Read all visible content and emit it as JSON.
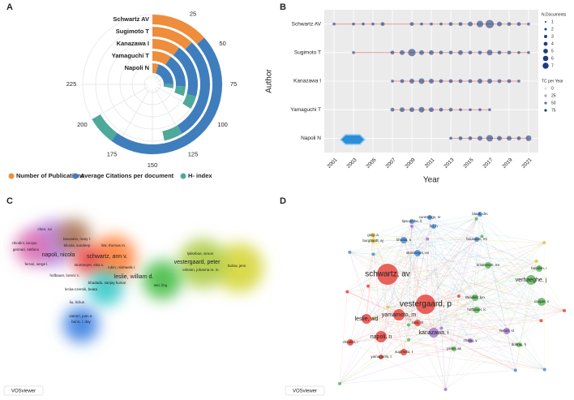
{
  "panel_labels": [
    "A",
    "B",
    "C",
    "D"
  ],
  "chart_data": [
    {
      "type": "radial_bar",
      "categories": [
        "Schwartz AV",
        "Sugimoto T",
        "Kanazawa I",
        "Yamaguchi T",
        "Napoli N"
      ],
      "series": [
        {
          "name": "Number of Publications",
          "color": "#ee8d3b",
          "values": [
            40,
            36,
            30,
            28,
            14
          ]
        },
        {
          "name": "Average Citations per document",
          "color": "#3f7ebd",
          "values": [
            140,
            88,
            58,
            50,
            60
          ]
        },
        {
          "name": "H- index",
          "color": "#4ea99a",
          "values": [
            20,
            16,
            14,
            14,
            10
          ]
        }
      ],
      "stacked": true,
      "xlim": [
        0,
        300
      ],
      "xticks": [
        25,
        50,
        75,
        100,
        125,
        150,
        175,
        200,
        225
      ]
    },
    {
      "type": "dot_timeline",
      "ylabel": "Author",
      "xlabel": "Year",
      "series": [
        {
          "name": "Schwartz AV",
          "x": [
            2001,
            2003,
            2004,
            2005,
            2006,
            2009,
            2010,
            2011,
            2012,
            2013,
            2014,
            2015,
            2016,
            2017,
            2018,
            2019,
            2020,
            2021
          ],
          "values": [
            1,
            1,
            1,
            1,
            2,
            2,
            1,
            1,
            1,
            2,
            2,
            3,
            5,
            7,
            3,
            2,
            2,
            1
          ]
        },
        {
          "name": "Sugimoto T",
          "x": [
            2003,
            2007,
            2008,
            2009,
            2010,
            2011,
            2012,
            2013,
            2014,
            2015,
            2016,
            2017,
            2018,
            2019,
            2020,
            2021
          ],
          "values": [
            1,
            2,
            3,
            6,
            3,
            3,
            2,
            2,
            3,
            2,
            2,
            4,
            2,
            2,
            1,
            1
          ]
        },
        {
          "name": "Kanazawa I",
          "x": [
            2007,
            2008,
            2009,
            2010,
            2011,
            2012,
            2013,
            2014,
            2015,
            2016,
            2017,
            2018,
            2019,
            2020
          ],
          "values": [
            1,
            2,
            3,
            4,
            3,
            2,
            2,
            2,
            2,
            3,
            3,
            2,
            2,
            1
          ]
        },
        {
          "name": "Yamaguchi T",
          "x": [
            2007,
            2008,
            2009,
            2010,
            2011,
            2012,
            2013,
            2014,
            2015,
            2016,
            2017
          ],
          "values": [
            2,
            3,
            3,
            4,
            3,
            2,
            2,
            1,
            1,
            1,
            1
          ]
        },
        {
          "name": "Napoli N",
          "x": [
            2013,
            2014,
            2015,
            2016,
            2017,
            2018,
            2019,
            2020,
            2021
          ],
          "values": [
            1,
            2,
            2,
            3,
            5,
            3,
            3,
            2,
            4
          ]
        }
      ],
      "line_color": "#e49b9b",
      "point_color": "#1f3b7b",
      "xlim": [
        2000,
        2022
      ],
      "xticks": [
        2001,
        2003,
        2005,
        2007,
        2009,
        2011,
        2013,
        2015,
        2017,
        2019,
        2021
      ],
      "size_legend": {
        "title": "N.Documents",
        "values": [
          1,
          2,
          3,
          4,
          5,
          6,
          7
        ]
      },
      "alpha_legend": {
        "title": "TC per Year",
        "values": [
          0,
          25,
          50,
          75
        ]
      }
    }
  ],
  "density_map": {
    "labels": [
      "chen, rui",
      "bouxsein, mary l.",
      "chiodini, iacopo",
      "gennari, stefano",
      "khosla, sundeep",
      "link, thomas m.",
      "napoli, nicola",
      "schwartz, ann v.",
      "ferrari, serge l.",
      "strotmeyer, elsa s.",
      "hofbauer, lorenz c.",
      "rubin, mishaela r.",
      "leslie, william d.",
      "bhadada, sanjay kumar",
      "lecka-czernik, beata",
      "lykkeboe, simon",
      "vestergaard, peter",
      "eriksen, johanna m. m.",
      "bulow, jens",
      "wei, ling",
      "liu, lichun",
      "vianeri, joan e.",
      "bunn, r. day"
    ],
    "watermark": "VOSviewer"
  },
  "network": {
    "labels": [
      "schwartz, av",
      "vestergaard, p",
      "yamamoto, m",
      "leslie, wd",
      "napoli, n",
      "kanazawa, i",
      "sato, m",
      "cummings, sr",
      "lipscombe, ll",
      "liu, h",
      "black, dm",
      "khosla, s",
      "gray, a",
      "burghardt, aj",
      "strotmeyer, es",
      "bouxsein, ml",
      "kristensen, mr",
      "bouillon, r",
      "verhaeghe, j",
      "thrailkill, km",
      "hofbauer, lc",
      "cooper, c",
      "ferrari, sl",
      "chiodini, i",
      "sugimoto, t",
      "yamaguchi, t",
      "zhang, y",
      "dobnig, h",
      "picke, ak"
    ],
    "watermark": "VOSviewer"
  }
}
